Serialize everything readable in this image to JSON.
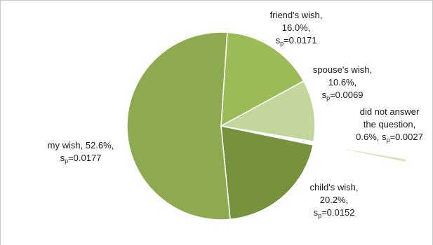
{
  "chart_data": {
    "type": "pie",
    "title": "",
    "legend": "none",
    "slices": [
      {
        "name": "friend's wish",
        "value": 16.0,
        "sp": "0.0171",
        "color": "#9bbb59",
        "lines": [
          "friend's wish,",
          "16.0%,",
          "s_p=0.0171"
        ],
        "label_lines": [
          "friend's wish,",
          "16.0%,"
        ],
        "sp_prefix": "s",
        "sp_sub": "p",
        "sp_suffix": "=0.0171"
      },
      {
        "name": "spouse's wish",
        "value": 10.6,
        "sp": "0.0069",
        "color": "#c3d69b",
        "label_lines": [
          "spouse's wish,",
          "10.6%,"
        ],
        "sp_prefix": "s",
        "sp_sub": "p",
        "sp_suffix": "=0.0069"
      },
      {
        "name": "did not answer the question",
        "value": 0.6,
        "sp": "0.0027",
        "color": "#d7e4bd",
        "label_lines": [
          "did not answer",
          "the question,"
        ],
        "last_prefix": "0.6%, s",
        "sp_sub": "p",
        "sp_suffix": "=0.0027"
      },
      {
        "name": "child's wish",
        "value": 20.2,
        "sp": "0.0152",
        "color": "#76923c",
        "label_lines": [
          "child's wish,",
          "20.2%,"
        ],
        "sp_prefix": "s",
        "sp_sub": "p",
        "sp_suffix": "=0.0152"
      },
      {
        "name": "my wish",
        "value": 52.6,
        "sp": "0.0177",
        "color": "#8eaa51",
        "label_lines": [
          "my wish, 52.6%,"
        ],
        "sp_prefix": "s",
        "sp_sub": "p",
        "sp_suffix": "=0.0177"
      }
    ]
  }
}
